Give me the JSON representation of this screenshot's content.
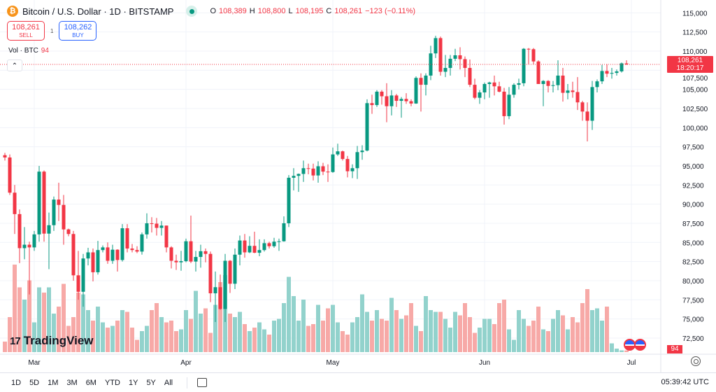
{
  "header": {
    "symbol": "Bitcoin / U.S. Dollar · 1D · BITSTAMP",
    "o_label": "O",
    "o": "108,389",
    "h_label": "H",
    "h": "108,800",
    "l_label": "L",
    "l": "108,195",
    "c_label": "C",
    "c": "108,261",
    "change": "−123 (−0.11%)"
  },
  "trade": {
    "sell_price": "108,261",
    "sell_label": "SELL",
    "spread": "1",
    "buy_price": "108,262",
    "buy_label": "BUY"
  },
  "volume_legend": {
    "label": "Vol · BTC",
    "value": "94"
  },
  "price_tag": {
    "price": "108,261",
    "countdown": "18:20:17"
  },
  "volume_tag": "94",
  "logo": "TradingView",
  "colors": {
    "up": "#089981",
    "down": "#f23645",
    "up_volume": "#92d2cc",
    "down_volume": "#f7a9a7"
  },
  "bottombar": {
    "ranges": [
      "1D",
      "5D",
      "1M",
      "3M",
      "6M",
      "YTD",
      "1Y",
      "5Y",
      "All"
    ],
    "clock": "05:39:42 UTC"
  },
  "chart_data": {
    "type": "candlestick",
    "y_ticks": [
      "115,000",
      "112,500",
      "110,000",
      "107,500",
      "105,000",
      "102,500",
      "100,000",
      "97,500",
      "95,000",
      "92,500",
      "90,000",
      "87,500",
      "85,000",
      "82,500",
      "80,000",
      "77,500",
      "75,000",
      "72,500"
    ],
    "ylim": [
      72500,
      115000
    ],
    "x_ticks": [
      "Mar",
      "Apr",
      "May",
      "Jun",
      "Jul"
    ],
    "x_range": [
      "2025-02-23",
      "2025-06-30"
    ],
    "grid": true,
    "last_price": 108261,
    "candles": [
      [
        96400,
        96700,
        95700,
        96100
      ],
      [
        96100,
        96500,
        91200,
        91500
      ],
      [
        91500,
        92500,
        86100,
        88700
      ],
      [
        88700,
        89300,
        82300,
        84250
      ],
      [
        84250,
        87000,
        82800,
        84700
      ],
      [
        84700,
        85100,
        78200,
        84350
      ],
      [
        84350,
        86500,
        83900,
        86050
      ],
      [
        86050,
        95000,
        85100,
        94250
      ],
      [
        94250,
        94400,
        85100,
        86150
      ],
      [
        86150,
        88900,
        81500,
        87250
      ],
      [
        87250,
        91000,
        86500,
        90600
      ],
      [
        90600,
        92800,
        87800,
        89900
      ],
      [
        89900,
        91200,
        84700,
        86700
      ],
      [
        86700,
        86800,
        85800,
        86100
      ],
      [
        86100,
        86500,
        80000,
        80700
      ],
      [
        80700,
        83900,
        77500,
        78550
      ],
      [
        78550,
        83500,
        76600,
        82900
      ],
      [
        82900,
        84300,
        82000,
        83700
      ],
      [
        83700,
        84200,
        79900,
        81100
      ],
      [
        81100,
        85200,
        80800,
        84000
      ],
      [
        84000,
        84600,
        83700,
        84350
      ],
      [
        84350,
        85000,
        82200,
        82600
      ],
      [
        82600,
        84700,
        82200,
        84050
      ],
      [
        84050,
        84100,
        81200,
        82700
      ],
      [
        82700,
        87400,
        82500,
        86850
      ],
      [
        86850,
        87400,
        83700,
        84200
      ],
      [
        84200,
        84800,
        83700,
        84000
      ],
      [
        84000,
        84500,
        83600,
        83800
      ],
      [
        83800,
        86300,
        83400,
        86050
      ],
      [
        86050,
        88800,
        85500,
        87500
      ],
      [
        87500,
        88300,
        86300,
        87450
      ],
      [
        87450,
        88200,
        85900,
        86900
      ],
      [
        86900,
        87800,
        85900,
        87200
      ],
      [
        87200,
        87200,
        83700,
        84350
      ],
      [
        84350,
        84500,
        81600,
        82600
      ],
      [
        82600,
        83400,
        81400,
        82400
      ],
      [
        82400,
        83900,
        81300,
        82550
      ],
      [
        82550,
        85500,
        82400,
        85150
      ],
      [
        85150,
        88500,
        82300,
        82500
      ],
      [
        82500,
        83900,
        81200,
        83100
      ],
      [
        83100,
        84700,
        81700,
        83850
      ],
      [
        83850,
        84200,
        82400,
        83500
      ],
      [
        83500,
        83800,
        77200,
        78350
      ],
      [
        78350,
        81200,
        74600,
        79150
      ],
      [
        79150,
        80800,
        76200,
        76300
      ],
      [
        76300,
        83500,
        74600,
        82600
      ],
      [
        82600,
        82700,
        78400,
        79600
      ],
      [
        79600,
        84200,
        78900,
        83400
      ],
      [
        83400,
        85900,
        82000,
        85250
      ],
      [
        85250,
        86100,
        83000,
        83700
      ],
      [
        83700,
        85800,
        83600,
        84550
      ],
      [
        84550,
        86400,
        83600,
        83650
      ],
      [
        83650,
        85400,
        83200,
        84000
      ],
      [
        84000,
        85400,
        83800,
        84900
      ],
      [
        84900,
        85100,
        84200,
        84500
      ],
      [
        84500,
        85600,
        84300,
        85100
      ],
      [
        85100,
        85500,
        83900,
        85150
      ],
      [
        85150,
        88400,
        85100,
        87500
      ],
      [
        87500,
        93800,
        87000,
        93450
      ],
      [
        93450,
        94700,
        91800,
        93700
      ],
      [
        93700,
        94000,
        91600,
        93950
      ],
      [
        93950,
        95700,
        92900,
        94700
      ],
      [
        94700,
        95300,
        93900,
        94650
      ],
      [
        94650,
        95300,
        93100,
        93750
      ],
      [
        93750,
        95600,
        92800,
        94950
      ],
      [
        94950,
        95400,
        93800,
        94250
      ],
      [
        94250,
        95200,
        92900,
        94200
      ],
      [
        94200,
        97400,
        94100,
        96500
      ],
      [
        96500,
        97900,
        96300,
        96900
      ],
      [
        96900,
        97000,
        95700,
        95900
      ],
      [
        95900,
        96300,
        93500,
        94300
      ],
      [
        94300,
        95200,
        93400,
        94700
      ],
      [
        94700,
        97600,
        93300,
        96800
      ],
      [
        96800,
        97700,
        95800,
        97000
      ],
      [
        97000,
        103700,
        96900,
        103200
      ],
      [
        103200,
        104300,
        101800,
        102950
      ],
      [
        102950,
        104900,
        102700,
        104700
      ],
      [
        104700,
        104900,
        103000,
        104100
      ],
      [
        104100,
        105800,
        100700,
        102800
      ],
      [
        102800,
        104900,
        101600,
        104200
      ],
      [
        104200,
        104400,
        102700,
        103500
      ],
      [
        103500,
        104000,
        101300,
        103750
      ],
      [
        103750,
        104500,
        103100,
        103450
      ],
      [
        103450,
        103700,
        102800,
        103150
      ],
      [
        103150,
        106700,
        103100,
        106500
      ],
      [
        106500,
        107100,
        102100,
        105600
      ],
      [
        105600,
        107100,
        104200,
        106800
      ],
      [
        106800,
        110700,
        106200,
        109700
      ],
      [
        109700,
        112000,
        109100,
        111700
      ],
      [
        111700,
        111900,
        106800,
        107300
      ],
      [
        107300,
        109500,
        106600,
        107800
      ],
      [
        107800,
        109500,
        106800,
        109000
      ],
      [
        109000,
        110300,
        108700,
        109450
      ],
      [
        109450,
        110500,
        107600,
        108950
      ],
      [
        108950,
        109300,
        106600,
        107800
      ],
      [
        107800,
        108900,
        105300,
        105600
      ],
      [
        105600,
        106400,
        103700,
        103900
      ],
      [
        103900,
        104900,
        103100,
        104600
      ],
      [
        104600,
        105900,
        103700,
        105700
      ],
      [
        105700,
        106000,
        103900,
        105900
      ],
      [
        105900,
        106800,
        104200,
        105400
      ],
      [
        105400,
        106000,
        104600,
        104700
      ],
      [
        104700,
        105200,
        100400,
        101500
      ],
      [
        101500,
        105300,
        101100,
        104300
      ],
      [
        104300,
        105800,
        103900,
        105600
      ],
      [
        105600,
        106400,
        105000,
        105800
      ],
      [
        105800,
        110400,
        105400,
        110300
      ],
      [
        110300,
        110400,
        108300,
        110250
      ],
      [
        110250,
        110400,
        108300,
        108650
      ],
      [
        108650,
        108800,
        105700,
        105700
      ],
      [
        105700,
        106200,
        102800,
        106100
      ],
      [
        106100,
        106200,
        104600,
        105450
      ],
      [
        105450,
        106100,
        104600,
        105550
      ],
      [
        105550,
        108800,
        104900,
        106800
      ],
      [
        106800,
        107800,
        103400,
        104550
      ],
      [
        104550,
        105700,
        103700,
        104850
      ],
      [
        104850,
        106000,
        103900,
        104650
      ],
      [
        104650,
        106600,
        102300,
        103300
      ],
      [
        103300,
        103500,
        100900,
        102100
      ],
      [
        102100,
        103300,
        98200,
        100900
      ],
      [
        100900,
        106100,
        99700,
        105300
      ],
      [
        105300,
        106300,
        104600,
        106050
      ],
      [
        106050,
        108200,
        105700,
        107400
      ],
      [
        107400,
        108300,
        106600,
        107050
      ],
      [
        107050,
        107800,
        106400,
        107150
      ],
      [
        107150,
        107600,
        106800,
        107350
      ],
      [
        107350,
        108500,
        107200,
        108400
      ],
      [
        108389,
        108800,
        108195,
        108261
      ]
    ],
    "volume": [
      600,
      2000,
      5000,
      3700,
      3000,
      4100,
      1700,
      3700,
      3400,
      3700,
      2200,
      2600,
      3900,
      1500,
      2000,
      3400,
      3300,
      2400,
      1800,
      2600,
      1700,
      1400,
      1500,
      1800,
      2400,
      2300,
      1400,
      700,
      1200,
      1500,
      2400,
      2800,
      2000,
      1700,
      1800,
      1200,
      1300,
      2400,
      1900,
      3500,
      2200,
      2500,
      1100,
      2700,
      4000,
      4400,
      2200,
      2000,
      2300,
      1600,
      1200,
      1400,
      1700,
      1300,
      1000,
      1800,
      1900,
      2800,
      4300,
      3200,
      1800,
      3000,
      1500,
      1600,
      2700,
      1800,
      2500,
      2700,
      1700,
      1200,
      1000,
      1700,
      2000,
      3300,
      2300,
      1800,
      2400,
      1900,
      1800,
      3100,
      2400,
      1900,
      2100,
      2800,
      1500,
      1200,
      3200,
      2400,
      2300,
      2300,
      1900,
      1400,
      2300,
      2100,
      2800,
      2000,
      1100,
      1400,
      1900,
      1900,
      1600,
      2800,
      3000,
      1300,
      700,
      2400,
      1900,
      1500,
      1800,
      2600,
      1300,
      1200,
      1900,
      2400,
      2100,
      1300,
      2000,
      1700,
      2800,
      3600,
      2400,
      2500,
      1800,
      2600,
      500,
      200,
      100,
      94
    ]
  }
}
